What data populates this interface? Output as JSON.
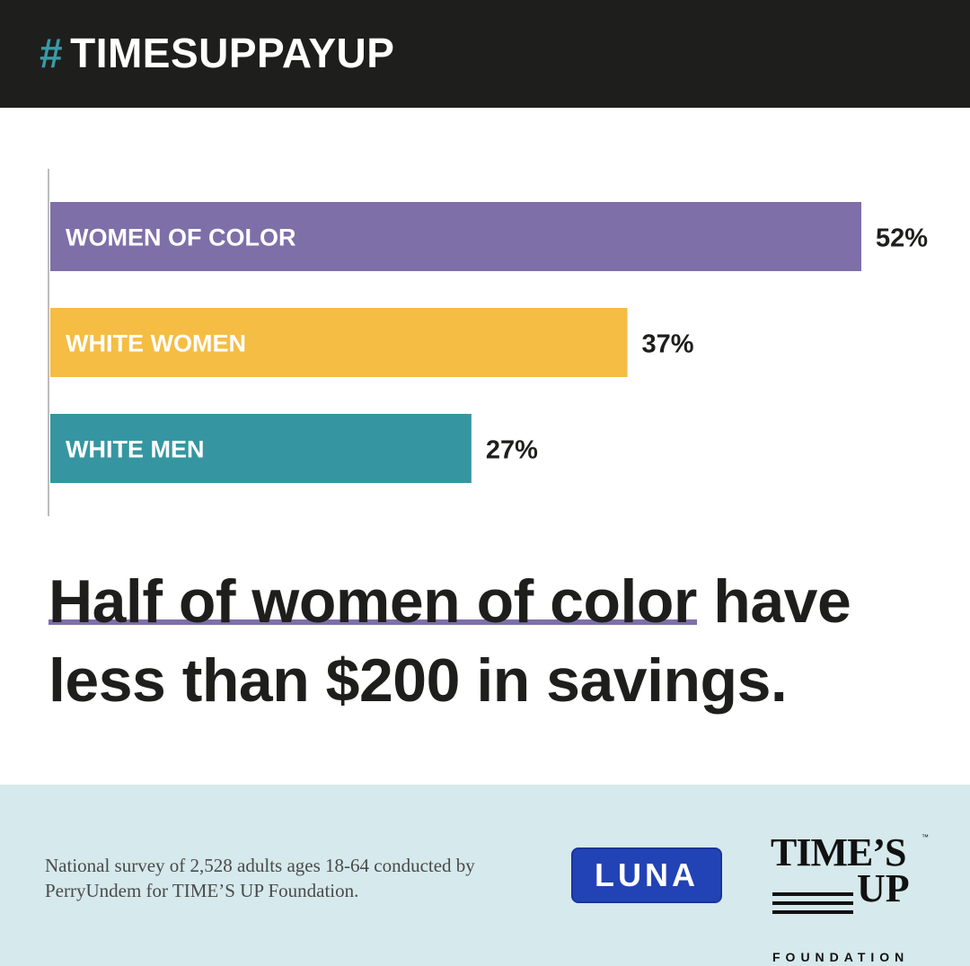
{
  "header": {
    "hash_symbol": "#",
    "hashtag": "TIMESUPPAYUP"
  },
  "chart_data": {
    "type": "bar",
    "orientation": "horizontal",
    "categories": [
      "WOMEN OF COLOR",
      "WHITE  WOMEN",
      "WHITE  MEN"
    ],
    "values": [
      52,
      37,
      27
    ],
    "value_labels": [
      "52%",
      "37%",
      "27%"
    ],
    "colors": [
      "#7e6fa8",
      "#f5bd44",
      "#3596a2"
    ],
    "xlim": [
      0,
      52
    ],
    "grid": false
  },
  "headline": {
    "highlighted": "Half of women of color",
    "rest": " have less than $200 in savings."
  },
  "footer": {
    "source": "National survey of 2,528 adults ages 18-64 conducted by PerryUndem for TIME’S UP Foundation.",
    "luna_logo": "LUNA",
    "timesup_logo_times": "TIME’S",
    "timesup_logo_tm": "™",
    "timesup_logo_up": "UP",
    "timesup_logo_foundation": "FOUNDATION"
  },
  "colors": {
    "header_bg": "#1e1f1d",
    "hash_accent": "#3a9aa6",
    "footer_bg": "#d6e9ec",
    "luna_blue": "#2243b6",
    "underline": "#7e6fa8"
  }
}
